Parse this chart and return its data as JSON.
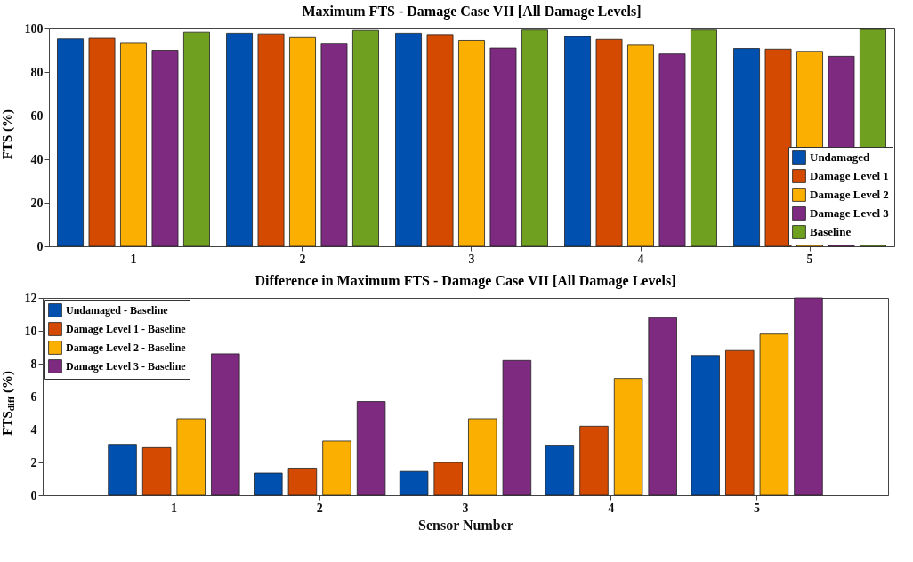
{
  "chart_data": [
    {
      "type": "bar",
      "title": "Maximum FTS - Damage Case VII [All Damage Levels]",
      "ylabel": "FTS (%)",
      "categories": [
        "1",
        "2",
        "3",
        "4",
        "5"
      ],
      "series": [
        {
          "name": "Undamaged",
          "color": "#0050b0",
          "values": [
            95.2,
            97.8,
            97.8,
            96.3,
            90.8
          ]
        },
        {
          "name": "Damage Level 1",
          "color": "#d44a00",
          "values": [
            95.5,
            97.5,
            97.2,
            95.0,
            90.5
          ]
        },
        {
          "name": "Damage Level 2",
          "color": "#fbaf00",
          "values": [
            93.5,
            95.8,
            94.5,
            92.3,
            89.5
          ]
        },
        {
          "name": "Damage Level 3",
          "color": "#7e2a80",
          "values": [
            90.0,
            93.2,
            91.0,
            88.3,
            87.2
          ]
        },
        {
          "name": "Baseline",
          "color": "#70a020",
          "values": [
            98.3,
            99.1,
            99.3,
            99.3,
            99.6
          ]
        }
      ],
      "ylim": [
        0,
        100
      ],
      "yticks": [
        0,
        20,
        40,
        60,
        80,
        100
      ],
      "grid": false,
      "legend": "bottom right"
    },
    {
      "type": "bar",
      "title": "Difference in Maximum FTS - Damage Case VII [All Damage Levels]",
      "xlabel": "Sensor Number",
      "ylabel": "FTS$_{diff}$ (%)",
      "categories": [
        "1",
        "2",
        "3",
        "4",
        "5"
      ],
      "series": [
        {
          "name": "Undamaged - Baseline",
          "color": "#0050b0",
          "values": [
            3.1,
            1.35,
            1.45,
            3.05,
            8.5
          ]
        },
        {
          "name": "Damage Level 1 - Baseline",
          "color": "#d44a00",
          "values": [
            2.9,
            1.65,
            2.0,
            4.2,
            8.8
          ]
        },
        {
          "name": "Damage Level 2 - Baseline",
          "color": "#fbaf00",
          "values": [
            4.65,
            3.3,
            4.65,
            7.1,
            9.8
          ]
        },
        {
          "name": "Damage Level 3 - Baseline",
          "color": "#7e2a80",
          "values": [
            8.6,
            5.7,
            8.2,
            10.8,
            12.0
          ]
        }
      ],
      "ylim": [
        0,
        12
      ],
      "yticks": [
        0,
        2,
        4,
        6,
        8,
        10,
        12
      ],
      "grid": false,
      "legend": "top left"
    }
  ]
}
